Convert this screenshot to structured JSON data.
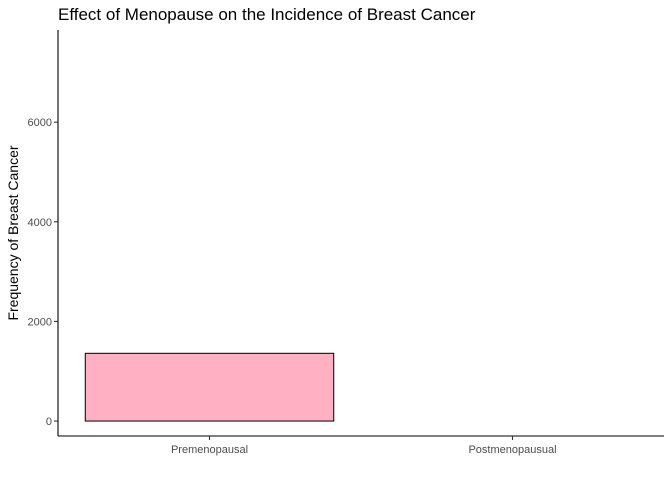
{
  "chart_data": {
    "type": "bar",
    "title": "Effect of Menopause on the Incidence of Breast Cancer",
    "xlabel": "",
    "ylabel": "Frequency of Breast Cancer",
    "categories": [
      "Premenopausal",
      "Postmenopausual"
    ],
    "values": [
      1360,
      0
    ],
    "ylim": [
      -300,
      7850
    ],
    "yticks": [
      0,
      2000,
      4000,
      6000
    ],
    "ytick_labels": [
      "0",
      "2000",
      "4000",
      "6000"
    ],
    "bar_fill": "#ffb1c3",
    "bar_stroke": "#000000",
    "grid": false,
    "legend": "none"
  }
}
